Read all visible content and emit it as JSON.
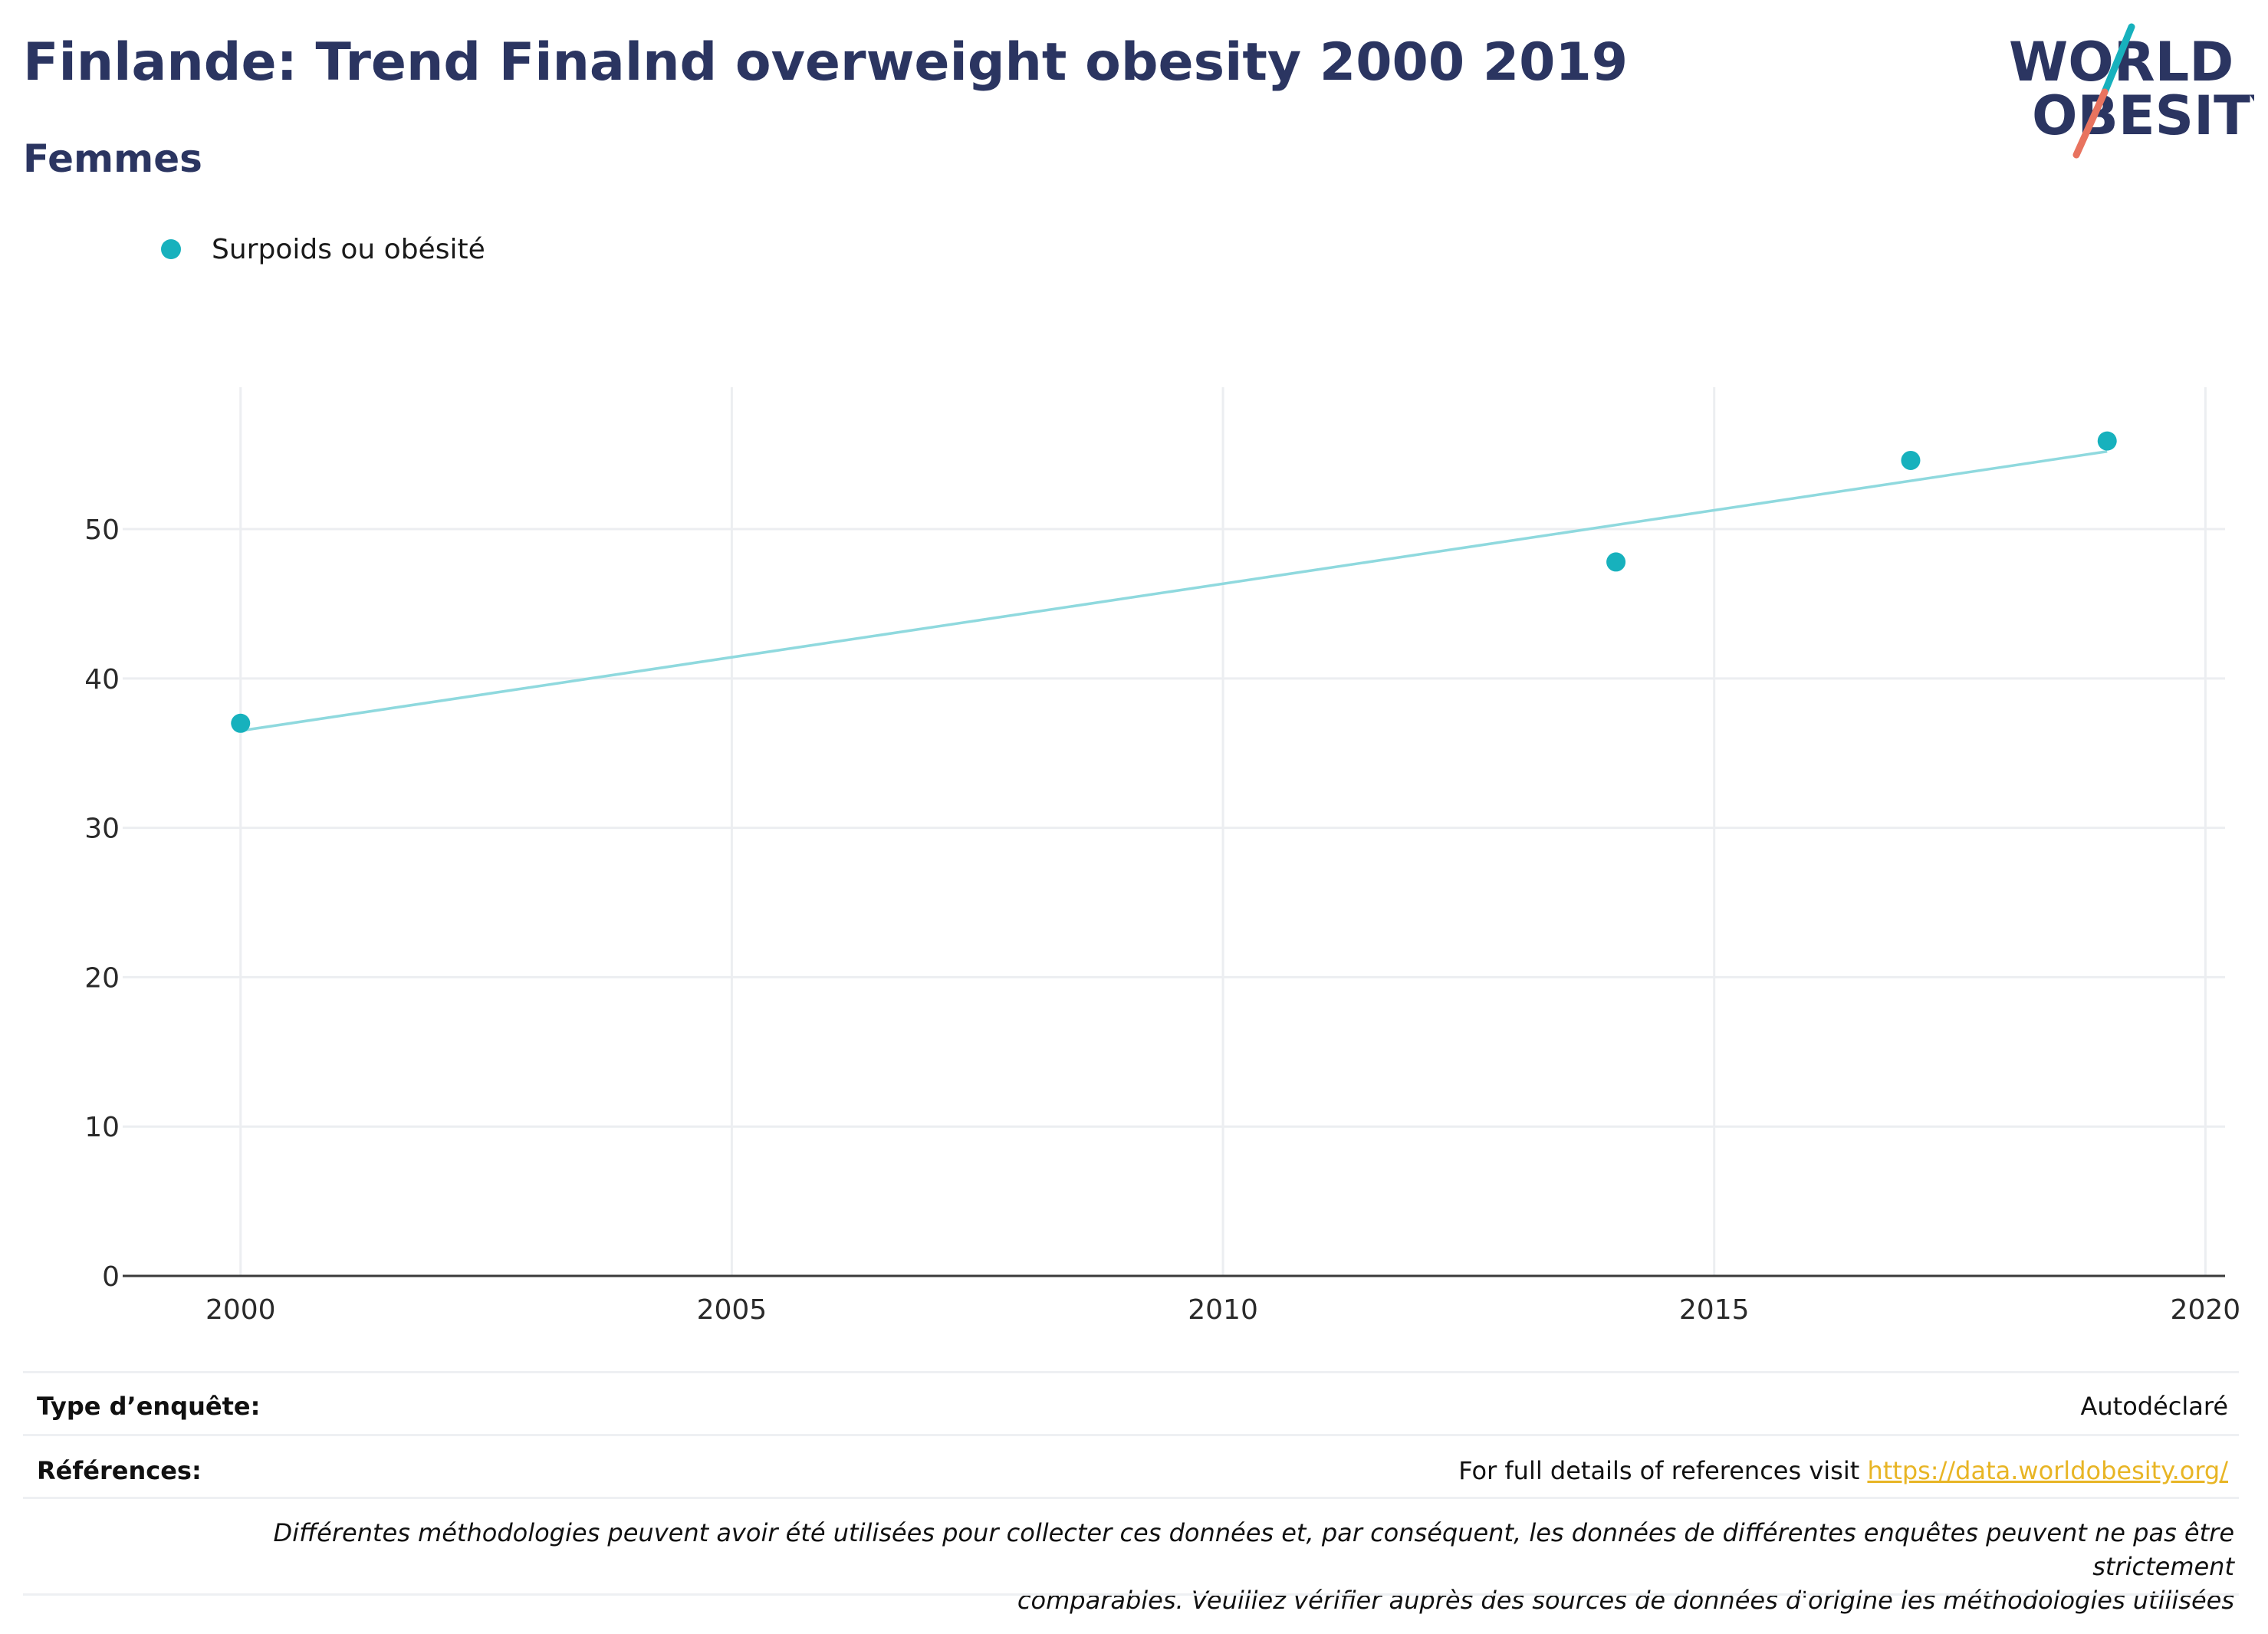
{
  "title": "Finlande: Trend Finalnd overweight obesity 2000 2019",
  "subtitle": "Femmes",
  "logo": {
    "line1": "WORLD",
    "line2": "OBESITY",
    "colors": {
      "text": "#2b3561",
      "slash_teal": "#17b1bd",
      "slash_coral": "#e8735f"
    }
  },
  "legend": {
    "label": "Surpoids ou obésité",
    "color": "#17b1bd"
  },
  "chart_data": {
    "type": "scatter",
    "series": [
      {
        "name": "Surpoids ou obésité",
        "color": "#17b1bd",
        "points": [
          {
            "x": 2000,
            "y": 37
          },
          {
            "x": 2014,
            "y": 47.8
          },
          {
            "x": 2017,
            "y": 54.6
          },
          {
            "x": 2019,
            "y": 55.9
          }
        ]
      }
    ],
    "trendline": {
      "color": "#8fd9de",
      "start": {
        "x": 2000,
        "y": 36.5
      },
      "end": {
        "x": 2019,
        "y": 55.2
      }
    },
    "x_ticks": [
      "2000",
      "2005",
      "2010",
      "2015",
      "2020"
    ],
    "y_ticks": [
      "0",
      "10",
      "20",
      "30",
      "40",
      "50"
    ],
    "xlim": [
      1998.8,
      2020.2
    ],
    "ylim": [
      0,
      59.5
    ],
    "grid": true
  },
  "footer": {
    "survey_type_label": "Type d’enquête:",
    "survey_type_value": "Autodéclaré",
    "references_label": "Références:",
    "references_text": "For full details of references visit ",
    "references_link": "https://data.worldobesity.org/",
    "disclaimer_line1": "Différentes méthodologies peuvent avoir été utilisées pour collecter ces données et, par conséquent, les données de différentes enquêtes peuvent ne pas être strictement",
    "disclaimer_line2": "comparables. Veuillez vérifier auprès des sources de données d'origine les méthodologies utilisées"
  }
}
